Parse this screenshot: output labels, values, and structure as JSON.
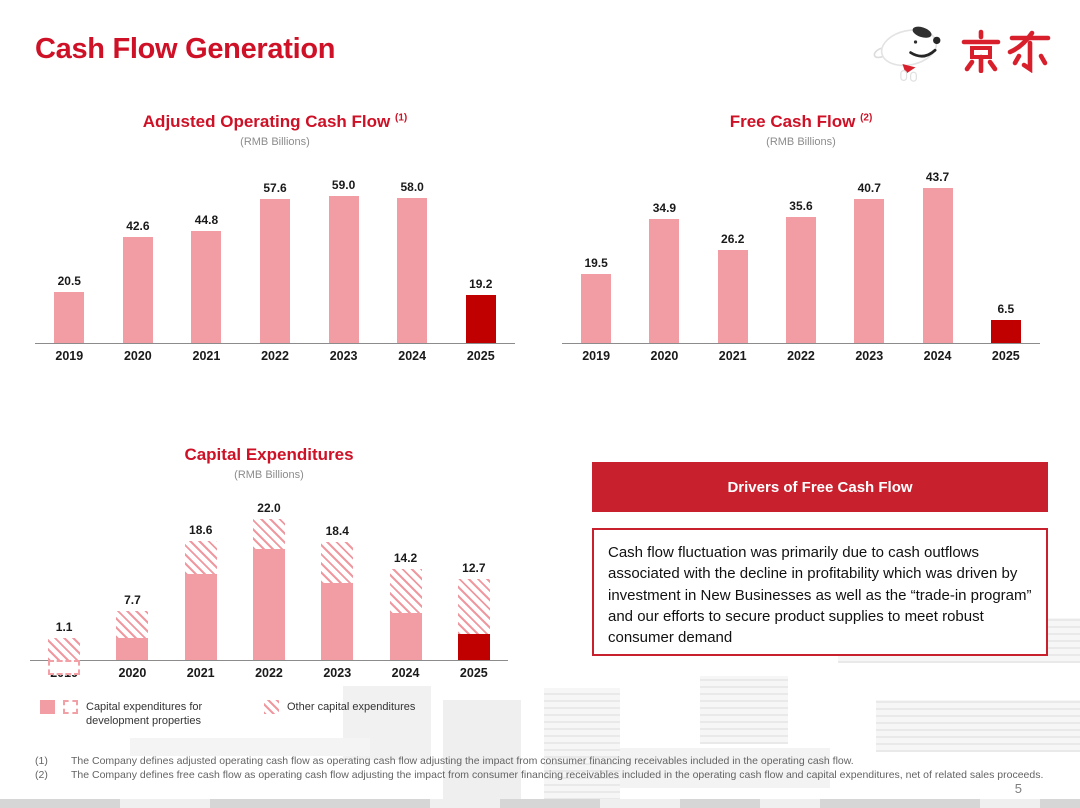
{
  "page": {
    "title": "Cash Flow Generation",
    "logo_text": "京东",
    "page_number": "5"
  },
  "colors": {
    "accent_red": "#ce1126",
    "header_box_red": "#c9202e",
    "bar_pink": "#f29ca3",
    "bar_dark_red": "#c00000",
    "subtitle_gray": "#8c8c8c"
  },
  "chart_data": [
    {
      "type": "bar",
      "title": "Adjusted Operating Cash Flow",
      "footnote_ref": "(1)",
      "subtitle": "(RMB Billions)",
      "categories": [
        "2019",
        "2020",
        "2021",
        "2022",
        "2023",
        "2024",
        "2025"
      ],
      "values": [
        20.5,
        42.6,
        44.8,
        57.6,
        59.0,
        58.0,
        19.2
      ],
      "highlight_last": true,
      "legend_position": "none",
      "grid": false,
      "ylim": [
        0,
        62
      ]
    },
    {
      "type": "bar",
      "title": "Free Cash Flow",
      "footnote_ref": "(2)",
      "subtitle": "(RMB Billions)",
      "categories": [
        "2019",
        "2020",
        "2021",
        "2022",
        "2023",
        "2024",
        "2025"
      ],
      "values": [
        19.5,
        34.9,
        26.2,
        35.6,
        40.7,
        43.7,
        6.5
      ],
      "highlight_last": true,
      "legend_position": "none",
      "grid": false,
      "ylim": [
        0,
        46
      ]
    },
    {
      "type": "bar",
      "subtype": "stacked",
      "title": "Capital Expenditures",
      "footnote_ref": "",
      "subtitle": "(RMB Billions)",
      "categories": [
        "2019",
        "2020",
        "2021",
        "2022",
        "2023",
        "2024",
        "2025"
      ],
      "totals": [
        1.1,
        7.7,
        18.6,
        22.0,
        18.4,
        14.2,
        12.7
      ],
      "series": [
        {
          "name": "Capital expenditures for development properties",
          "style": "solid",
          "values": [
            -2.4,
            3.5,
            13.5,
            17.4,
            12.1,
            7.3,
            4.1
          ]
        },
        {
          "name": "Other capital expenditures",
          "style": "hatched",
          "values": [
            3.5,
            4.2,
            5.1,
            4.6,
            6.3,
            6.9,
            8.6
          ]
        }
      ],
      "note": "series values estimated from bar proportions; totals are labeled on chart",
      "highlight_last": true,
      "grid": false,
      "ylim": [
        -3,
        24
      ],
      "legend": [
        {
          "label": "Capital expenditures for development properties"
        },
        {
          "label": "Other capital expenditures"
        }
      ]
    }
  ],
  "drivers_box": {
    "header": "Drivers of Free Cash Flow",
    "body": "Cash flow fluctuation was primarily due to cash outflows associated with the decline in profitability which was driven by investment in New Businesses as well as the “trade-in program” and our efforts to secure product supplies to meet robust consumer demand"
  },
  "footnotes": [
    {
      "marker": "(1)",
      "text": "The Company defines adjusted operating cash flow as operating cash flow adjusting the impact from consumer financing receivables included in the operating cash flow."
    },
    {
      "marker": "(2)",
      "text": "The Company defines free cash flow as operating cash flow adjusting the impact from consumer financing receivables included in the operating cash flow and capital expenditures, net of related sales proceeds."
    }
  ]
}
